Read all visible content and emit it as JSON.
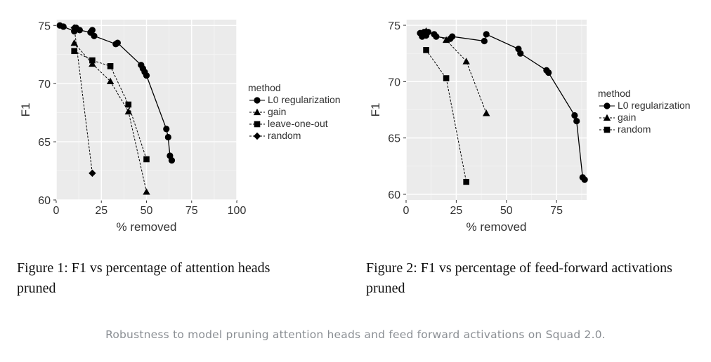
{
  "colors": {
    "panel": "#ebebeb",
    "grid_major": "#ffffff",
    "grid_minor": "#f6f6f6",
    "ink": "#000000",
    "caption_gray": "#8a8e93"
  },
  "figure1": {
    "caption": "Figure 1: F1 vs percentage of attention heads pruned"
  },
  "figure2": {
    "caption": "Figure 2: F1 vs percentage of feed-forward activations pruned"
  },
  "page_caption": "Robustness to model pruning attention heads and feed forward activations on Squad 2.0.",
  "chart_data": [
    {
      "type": "line",
      "xlabel": "% removed",
      "ylabel": "F1",
      "xlim": [
        0,
        100
      ],
      "ylim": [
        60,
        75.5
      ],
      "xticks": [
        0,
        25,
        50,
        75,
        100
      ],
      "yticks": [
        60,
        65,
        70,
        75
      ],
      "grid": true,
      "legend": {
        "title": "method",
        "placement": "right"
      },
      "series": [
        {
          "name": "L0 regularization",
          "marker": "circle",
          "line": "solid",
          "x": [
            2,
            4,
            10,
            11,
            13,
            19,
            20,
            21,
            33,
            34,
            47,
            48,
            49,
            50,
            61,
            62,
            63,
            64
          ],
          "y": [
            75.0,
            74.9,
            74.5,
            74.8,
            74.6,
            74.4,
            74.6,
            74.1,
            73.4,
            73.5,
            71.6,
            71.3,
            71.0,
            70.7,
            66.1,
            65.4,
            63.8,
            63.4
          ]
        },
        {
          "name": "gain",
          "marker": "triangle",
          "line": "dashed",
          "x": [
            10,
            20,
            30,
            40,
            50
          ],
          "y": [
            73.5,
            71.7,
            70.2,
            67.6,
            60.7
          ]
        },
        {
          "name": "leave-one-out",
          "marker": "square",
          "line": "dashed",
          "x": [
            10,
            20,
            30,
            40,
            50
          ],
          "y": [
            72.8,
            72.0,
            71.5,
            68.2,
            63.5
          ]
        },
        {
          "name": "random",
          "marker": "diamond",
          "line": "dashed",
          "x": [
            10,
            20
          ],
          "y": [
            74.8,
            62.3
          ]
        }
      ]
    },
    {
      "type": "line",
      "xlabel": "% removed",
      "ylabel": "F1",
      "xlim": [
        0,
        90
      ],
      "ylim": [
        59.5,
        75.5
      ],
      "xticks": [
        0,
        25,
        50,
        75
      ],
      "yticks": [
        60,
        65,
        70,
        75
      ],
      "grid": true,
      "legend": {
        "title": "method",
        "placement": "right"
      },
      "series": [
        {
          "name": "L0 regularization",
          "marker": "circle",
          "line": "solid",
          "x": [
            7,
            8,
            9,
            10,
            11,
            14,
            15,
            22,
            23,
            39,
            40,
            56,
            57,
            70,
            71,
            84,
            85,
            88,
            89
          ],
          "y": [
            74.3,
            74.0,
            74.4,
            74.1,
            74.4,
            74.2,
            74.0,
            73.8,
            74.0,
            73.6,
            74.2,
            72.9,
            72.5,
            71.0,
            70.8,
            67.0,
            66.5,
            61.5,
            61.3
          ]
        },
        {
          "name": "gain",
          "marker": "triangle",
          "line": "dashed",
          "x": [
            10,
            20,
            30,
            40
          ],
          "y": [
            74.5,
            73.7,
            71.8,
            67.2
          ]
        },
        {
          "name": "random",
          "marker": "square",
          "line": "dashed",
          "x": [
            10,
            20,
            30
          ],
          "y": [
            72.8,
            70.3,
            61.1
          ]
        }
      ]
    }
  ]
}
